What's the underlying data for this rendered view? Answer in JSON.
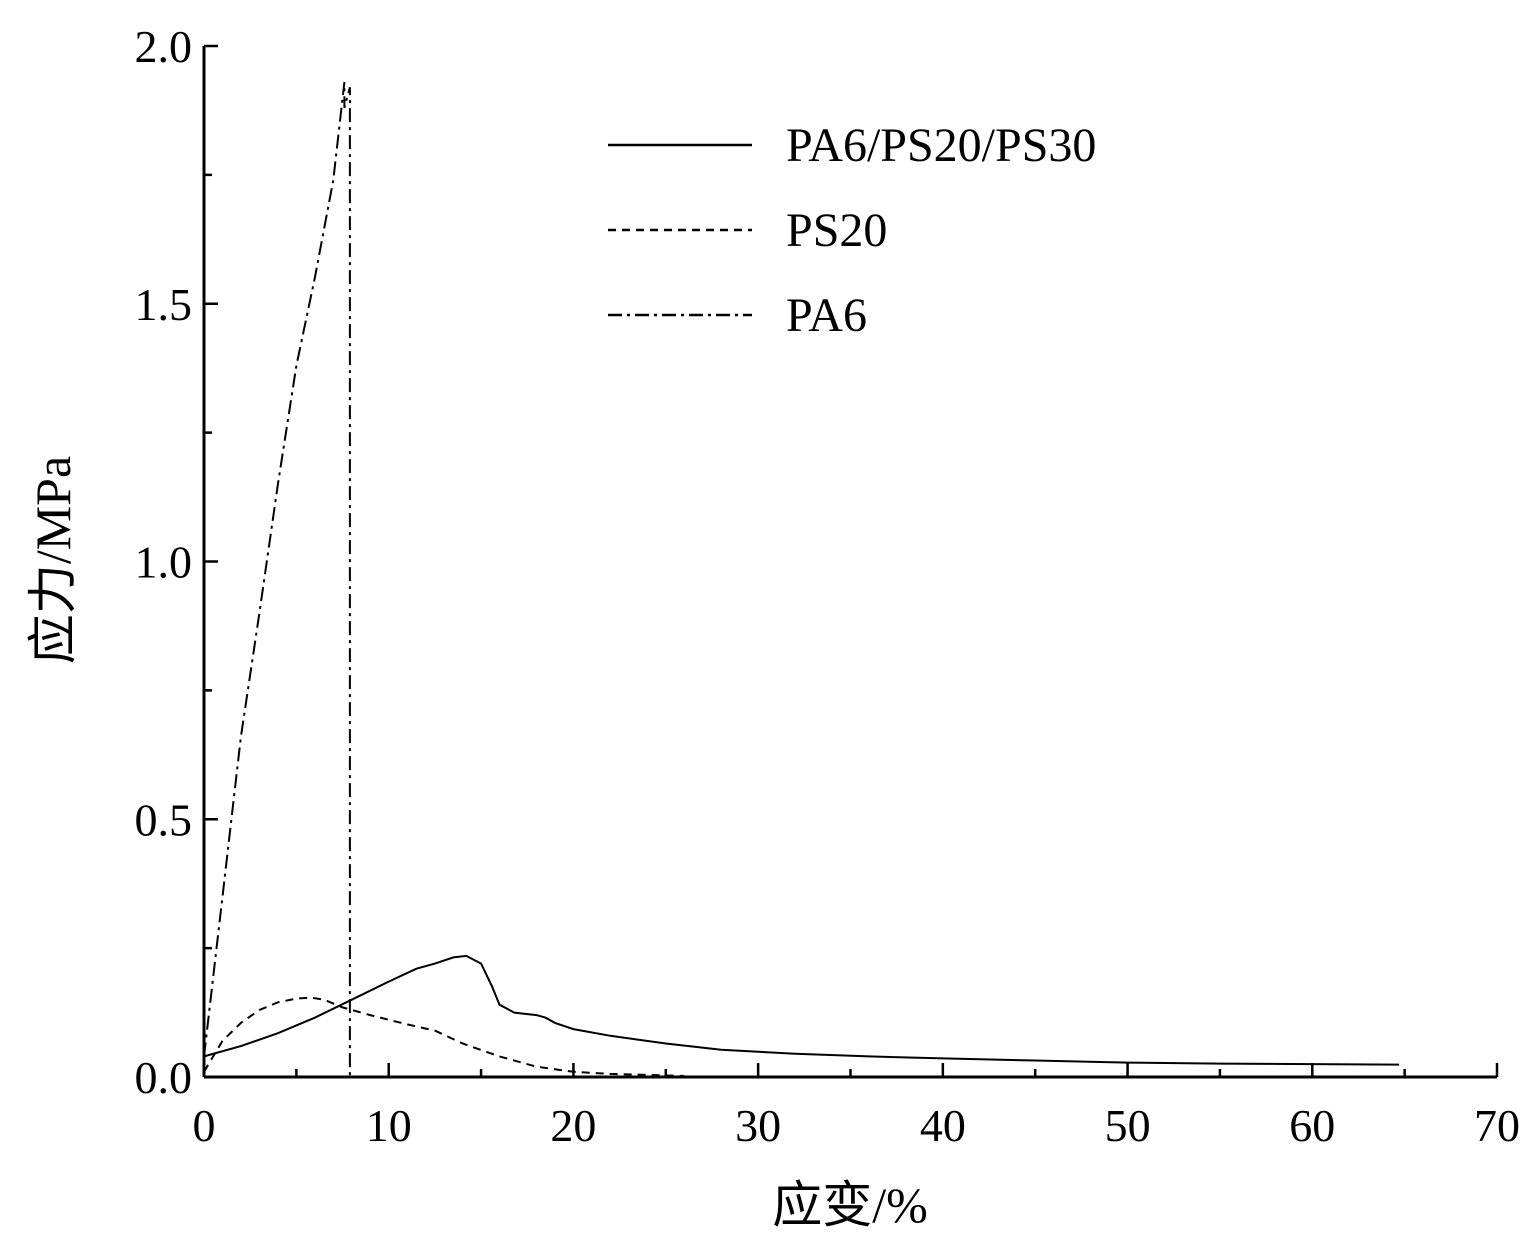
{
  "chart_data": {
    "type": "line",
    "xlabel": "应变/%",
    "ylabel": "应力/MPa",
    "xlim": [
      0,
      70
    ],
    "ylim": [
      0,
      2.0
    ],
    "xticks": [
      0,
      10,
      20,
      30,
      40,
      50,
      60,
      70
    ],
    "yticks": [
      0.0,
      0.5,
      1.0,
      1.5,
      2.0
    ],
    "xtick_labels": [
      "0",
      "10",
      "20",
      "30",
      "40",
      "50",
      "60",
      "70"
    ],
    "ytick_labels": [
      "0.0",
      "0.5",
      "1.0",
      "1.5",
      "2.0"
    ],
    "grid": false,
    "legend_position": "top-center",
    "series": [
      {
        "name": "PA6/PS20/PS30",
        "style": "solid",
        "color": "#000000",
        "x": [
          0,
          2,
          4,
          6,
          8,
          10,
          11.5,
          12.5,
          13.5,
          14.2,
          15,
          15.6,
          16,
          16.8,
          18,
          18.5,
          19,
          20,
          22,
          25,
          28,
          32,
          36,
          40,
          45,
          50,
          55,
          60,
          64.7
        ],
        "y": [
          0.04,
          0.06,
          0.085,
          0.115,
          0.15,
          0.185,
          0.21,
          0.22,
          0.232,
          0.235,
          0.22,
          0.175,
          0.14,
          0.125,
          0.12,
          0.115,
          0.105,
          0.093,
          0.08,
          0.065,
          0.053,
          0.045,
          0.04,
          0.036,
          0.032,
          0.028,
          0.026,
          0.025,
          0.024
        ]
      },
      {
        "name": "PS20",
        "style": "dashed",
        "color": "#000000",
        "x": [
          0,
          0.5,
          1,
          2,
          3,
          4,
          5,
          5.8,
          6.5,
          7.5,
          9,
          11,
          12.5,
          14,
          16,
          18,
          20,
          22,
          24,
          26
        ],
        "y": [
          0.01,
          0.04,
          0.07,
          0.105,
          0.13,
          0.145,
          0.152,
          0.154,
          0.15,
          0.135,
          0.12,
          0.102,
          0.09,
          0.065,
          0.04,
          0.02,
          0.01,
          0.006,
          0.004,
          0.002
        ]
      },
      {
        "name": "PA6",
        "style": "dashdot",
        "color": "#000000",
        "x": [
          0,
          1,
          2,
          3,
          4,
          5,
          6,
          7,
          7.6,
          7.6,
          7.9,
          7.9
        ],
        "y": [
          0.04,
          0.35,
          0.66,
          0.9,
          1.15,
          1.38,
          1.55,
          1.74,
          1.93,
          1.88,
          1.92,
          0.0
        ]
      }
    ]
  }
}
